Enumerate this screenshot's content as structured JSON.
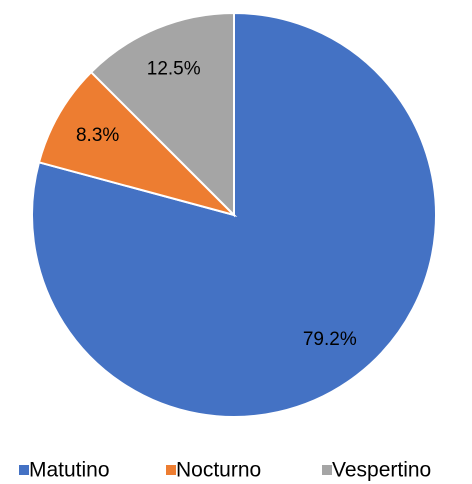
{
  "chart_data": {
    "type": "pie",
    "categories": [
      "Matutino",
      "Nocturno",
      "Vespertino"
    ],
    "values": [
      79.2,
      8.3,
      12.5
    ],
    "value_labels": [
      "79.2%",
      "8.3%",
      "12.5%"
    ],
    "colors": [
      "#4472c4",
      "#ed7d31",
      "#a5a5a5"
    ],
    "legend": "bottom"
  }
}
